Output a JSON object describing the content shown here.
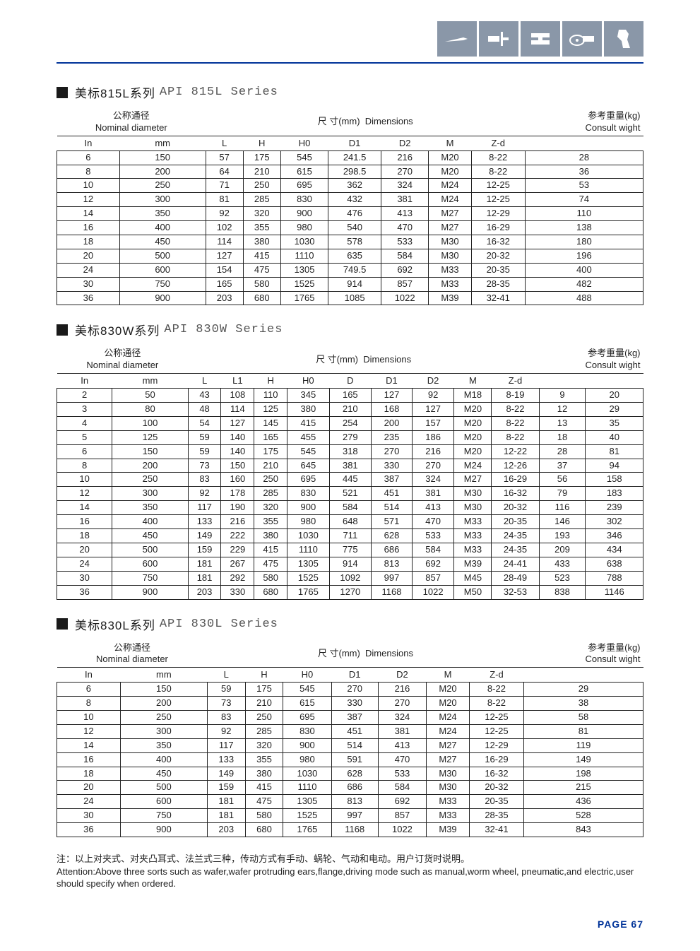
{
  "colors": {
    "accent": "#003399",
    "icon_bg": "#8a97a8",
    "icon_fg": "#ffffff",
    "text": "#222222",
    "border": "#222222"
  },
  "icons": [
    "knife-icon",
    "clamp-icon",
    "press-icon",
    "saw-icon",
    "tool-icon"
  ],
  "header_labels": {
    "nominal_cn": "公称通径",
    "nominal_en": "Nominal diameter",
    "dims_cn": "尺 寸(mm)",
    "dims_en": "Dimensions",
    "weight_cn": "参考重量(kg)",
    "weight_en": "Consult wight"
  },
  "tables": [
    {
      "title_cn": "美标815L系列",
      "title_en": "API 815L Series",
      "nd_cols": [
        "In",
        "mm"
      ],
      "dim_cols": [
        "L",
        "H",
        "H0",
        "D1",
        "D2",
        "M",
        "Z-d"
      ],
      "wt_cols": [
        ""
      ],
      "nd_span": 2,
      "dim_span": 7,
      "wt_span": 1,
      "rows": [
        [
          "6",
          "150",
          "57",
          "175",
          "545",
          "241.5",
          "216",
          "M20",
          "8-22",
          "28"
        ],
        [
          "8",
          "200",
          "64",
          "210",
          "615",
          "298.5",
          "270",
          "M20",
          "8-22",
          "36"
        ],
        [
          "10",
          "250",
          "71",
          "250",
          "695",
          "362",
          "324",
          "M24",
          "12-25",
          "53"
        ],
        [
          "12",
          "300",
          "81",
          "285",
          "830",
          "432",
          "381",
          "M24",
          "12-25",
          "74"
        ],
        [
          "14",
          "350",
          "92",
          "320",
          "900",
          "476",
          "413",
          "M27",
          "12-29",
          "110"
        ],
        [
          "16",
          "400",
          "102",
          "355",
          "980",
          "540",
          "470",
          "M27",
          "16-29",
          "138"
        ],
        [
          "18",
          "450",
          "114",
          "380",
          "1030",
          "578",
          "533",
          "M30",
          "16-32",
          "180"
        ],
        [
          "20",
          "500",
          "127",
          "415",
          "1110",
          "635",
          "584",
          "M30",
          "20-32",
          "196"
        ],
        [
          "24",
          "600",
          "154",
          "475",
          "1305",
          "749.5",
          "692",
          "M33",
          "20-35",
          "400"
        ],
        [
          "30",
          "750",
          "165",
          "580",
          "1525",
          "914",
          "857",
          "M33",
          "28-35",
          "482"
        ],
        [
          "36",
          "900",
          "203",
          "680",
          "1765",
          "1085",
          "1022",
          "M39",
          "32-41",
          "488"
        ]
      ]
    },
    {
      "title_cn": "美标830W系列",
      "title_en": "API 830W Series",
      "nd_cols": [
        "In",
        "mm"
      ],
      "dim_cols": [
        "L",
        "L1",
        "H",
        "H0",
        "D",
        "D1",
        "D2",
        "M",
        "Z-d"
      ],
      "wt_cols": [
        "",
        ""
      ],
      "nd_span": 2,
      "dim_span": 9,
      "wt_span": 2,
      "rows": [
        [
          "2",
          "50",
          "43",
          "108",
          "110",
          "345",
          "165",
          "127",
          "92",
          "M18",
          "8-19",
          "9",
          "20"
        ],
        [
          "3",
          "80",
          "48",
          "114",
          "125",
          "380",
          "210",
          "168",
          "127",
          "M20",
          "8-22",
          "12",
          "29"
        ],
        [
          "4",
          "100",
          "54",
          "127",
          "145",
          "415",
          "254",
          "200",
          "157",
          "M20",
          "8-22",
          "13",
          "35"
        ],
        [
          "5",
          "125",
          "59",
          "140",
          "165",
          "455",
          "279",
          "235",
          "186",
          "M20",
          "8-22",
          "18",
          "40"
        ],
        [
          "6",
          "150",
          "59",
          "140",
          "175",
          "545",
          "318",
          "270",
          "216",
          "M20",
          "12-22",
          "28",
          "81"
        ],
        [
          "8",
          "200",
          "73",
          "150",
          "210",
          "645",
          "381",
          "330",
          "270",
          "M24",
          "12-26",
          "37",
          "94"
        ],
        [
          "10",
          "250",
          "83",
          "160",
          "250",
          "695",
          "445",
          "387",
          "324",
          "M27",
          "16-29",
          "56",
          "158"
        ],
        [
          "12",
          "300",
          "92",
          "178",
          "285",
          "830",
          "521",
          "451",
          "381",
          "M30",
          "16-32",
          "79",
          "183"
        ],
        [
          "14",
          "350",
          "117",
          "190",
          "320",
          "900",
          "584",
          "514",
          "413",
          "M30",
          "20-32",
          "116",
          "239"
        ],
        [
          "16",
          "400",
          "133",
          "216",
          "355",
          "980",
          "648",
          "571",
          "470",
          "M33",
          "20-35",
          "146",
          "302"
        ],
        [
          "18",
          "450",
          "149",
          "222",
          "380",
          "1030",
          "711",
          "628",
          "533",
          "M33",
          "24-35",
          "193",
          "346"
        ],
        [
          "20",
          "500",
          "159",
          "229",
          "415",
          "1110",
          "775",
          "686",
          "584",
          "M33",
          "24-35",
          "209",
          "434"
        ],
        [
          "24",
          "600",
          "181",
          "267",
          "475",
          "1305",
          "914",
          "813",
          "692",
          "M39",
          "24-41",
          "433",
          "638"
        ],
        [
          "30",
          "750",
          "181",
          "292",
          "580",
          "1525",
          "1092",
          "997",
          "857",
          "M45",
          "28-49",
          "523",
          "788"
        ],
        [
          "36",
          "900",
          "203",
          "330",
          "680",
          "1765",
          "1270",
          "1168",
          "1022",
          "M50",
          "32-53",
          "838",
          "1146"
        ]
      ]
    },
    {
      "title_cn": "美标830L系列",
      "title_en": "API 830L Series",
      "nd_cols": [
        "In",
        "mm"
      ],
      "dim_cols": [
        "L",
        "H",
        "H0",
        "D1",
        "D2",
        "M",
        "Z-d"
      ],
      "wt_cols": [
        ""
      ],
      "nd_span": 2,
      "dim_span": 7,
      "wt_span": 1,
      "rows": [
        [
          "6",
          "150",
          "59",
          "175",
          "545",
          "270",
          "216",
          "M20",
          "8-22",
          "29"
        ],
        [
          "8",
          "200",
          "73",
          "210",
          "615",
          "330",
          "270",
          "M20",
          "8-22",
          "38"
        ],
        [
          "10",
          "250",
          "83",
          "250",
          "695",
          "387",
          "324",
          "M24",
          "12-25",
          "58"
        ],
        [
          "12",
          "300",
          "92",
          "285",
          "830",
          "451",
          "381",
          "M24",
          "12-25",
          "81"
        ],
        [
          "14",
          "350",
          "117",
          "320",
          "900",
          "514",
          "413",
          "M27",
          "12-29",
          "119"
        ],
        [
          "16",
          "400",
          "133",
          "355",
          "980",
          "591",
          "470",
          "M27",
          "16-29",
          "149"
        ],
        [
          "18",
          "450",
          "149",
          "380",
          "1030",
          "628",
          "533",
          "M30",
          "16-32",
          "198"
        ],
        [
          "20",
          "500",
          "159",
          "415",
          "1110",
          "686",
          "584",
          "M30",
          "20-32",
          "215"
        ],
        [
          "24",
          "600",
          "181",
          "475",
          "1305",
          "813",
          "692",
          "M33",
          "20-35",
          "436"
        ],
        [
          "30",
          "750",
          "181",
          "580",
          "1525",
          "997",
          "857",
          "M33",
          "28-35",
          "528"
        ],
        [
          "36",
          "900",
          "203",
          "680",
          "1765",
          "1168",
          "1022",
          "M39",
          "32-41",
          "843"
        ]
      ]
    }
  ],
  "footnote_cn": "注：以上对夹式、对夹凸耳式、法兰式三种，传动方式有手动、蜗轮、气动和电动。用户订货时说明。",
  "footnote_en": "Attention:Above three sorts such as wafer,wafer protruding ears,flange,driving mode such as manual,worm wheel, pneumatic,and electric,user should specify when ordered.",
  "page_number": "PAGE 67"
}
